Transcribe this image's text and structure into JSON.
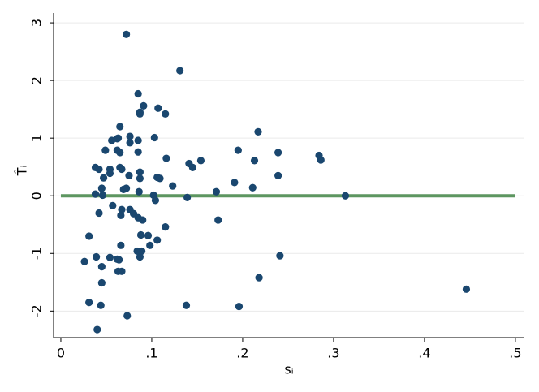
{
  "chart_data": {
    "type": "scatter",
    "x_label": "sᵢ",
    "y_label": "T̂ᵢ",
    "color": "#1a476f",
    "x": [
      0.072,
      0.131,
      0.085,
      0.091,
      0.107,
      0.087,
      0.087,
      0.115,
      0.065,
      0.217,
      0.103,
      0.076,
      0.062,
      0.063,
      0.056,
      0.085,
      0.076,
      0.049,
      0.062,
      0.065,
      0.085,
      0.195,
      0.239,
      0.284,
      0.286,
      0.213,
      0.116,
      0.154,
      0.141,
      0.145,
      0.038,
      0.042,
      0.054,
      0.054,
      0.065,
      0.067,
      0.087,
      0.075,
      0.106,
      0.109,
      0.087,
      0.239,
      0.191,
      0.047,
      0.123,
      0.211,
      0.045,
      0.069,
      0.072,
      0.086,
      0.038,
      0.046,
      0.102,
      0.171,
      0.139,
      0.313,
      0.104,
      0.057,
      0.042,
      0.067,
      0.076,
      0.08,
      0.085,
      0.09,
      0.066,
      0.173,
      0.115,
      0.088,
      0.096,
      0.031,
      0.106,
      0.066,
      0.098,
      0.089,
      0.084,
      0.087,
      0.039,
      0.241,
      0.054,
      0.062,
      0.064,
      0.026,
      0.045,
      0.063,
      0.067,
      0.218,
      0.045,
      0.446,
      0.031,
      0.044,
      0.138,
      0.196,
      0.073,
      0.04
    ],
    "values": [
      2.8,
      2.17,
      1.77,
      1.56,
      1.52,
      1.45,
      1.42,
      1.42,
      1.2,
      1.11,
      1.01,
      1.03,
      0.99,
      1.0,
      0.96,
      0.96,
      0.92,
      0.79,
      0.79,
      0.75,
      0.76,
      0.79,
      0.75,
      0.7,
      0.62,
      0.61,
      0.65,
      0.61,
      0.56,
      0.49,
      0.49,
      0.46,
      0.46,
      0.39,
      0.49,
      0.46,
      0.41,
      0.35,
      0.32,
      0.3,
      0.3,
      0.35,
      0.23,
      0.31,
      0.17,
      0.14,
      0.13,
      0.11,
      0.13,
      0.07,
      0.03,
      0.01,
      0.01,
      0.07,
      -0.03,
      0.0,
      -0.08,
      -0.17,
      -0.3,
      -0.24,
      -0.24,
      -0.31,
      -0.38,
      -0.42,
      -0.34,
      -0.42,
      -0.54,
      -0.68,
      -0.69,
      -0.7,
      -0.77,
      -0.86,
      -0.86,
      -0.96,
      -0.96,
      -1.06,
      -1.06,
      -1.04,
      -1.07,
      -1.1,
      -1.11,
      -1.14,
      -1.23,
      -1.31,
      -1.31,
      -1.42,
      -1.51,
      -1.62,
      -1.85,
      -1.9,
      -1.9,
      -1.92,
      -2.08,
      -2.32
    ],
    "hline": {
      "y": 0,
      "xmin": 0,
      "xmax": 0.5,
      "color": "#5d9660"
    },
    "xlim": [
      -0.008,
      0.509
    ],
    "ylim": [
      -2.46,
      3.17
    ],
    "xticks": [
      0,
      {
        "value": 0.1,
        "label": ".1"
      },
      {
        "value": 0.2,
        "label": ".2"
      },
      {
        "value": 0.3,
        "label": ".3"
      },
      {
        "value": 0.4,
        "label": ".4"
      },
      {
        "value": 0.5,
        "label": ".5"
      }
    ],
    "yticks": [
      -2,
      -1,
      0,
      1,
      2,
      3
    ],
    "grid": true
  }
}
